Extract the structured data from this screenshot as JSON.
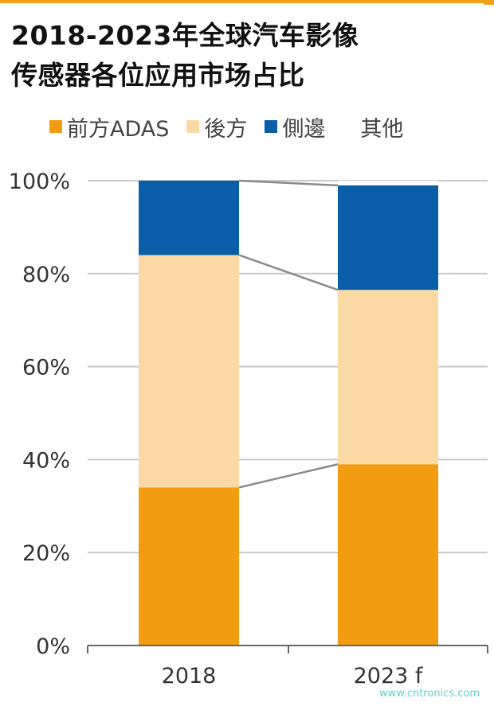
{
  "title_lines": [
    "2018-2023年全球汽车影像",
    "传感器各位应用市场占比"
  ],
  "legend": [
    {
      "label": "前方ADAS",
      "color": "#f29c12"
    },
    {
      "label": "後方",
      "color": "#fbd9a4"
    },
    {
      "label": "側邊",
      "color": "#0a5ea8"
    },
    {
      "label": "其他",
      "color": "#ffffff"
    }
  ],
  "watermark": "www.cntronics.com",
  "chart_data": {
    "type": "bar",
    "stacked": true,
    "title": "2018-2023年全球汽车影像传感器各位应用市场占比",
    "categories": [
      "2018",
      "2023 f"
    ],
    "ylim": [
      0,
      100
    ],
    "yticks": [
      0,
      20,
      40,
      60,
      80,
      100
    ],
    "ytick_labels": [
      "0%",
      "20%",
      "40%",
      "60%",
      "80%",
      "100%"
    ],
    "grid": true,
    "legend_position": "top",
    "series": [
      {
        "name": "前方ADAS",
        "values": [
          34,
          39
        ],
        "color": "#f29c12"
      },
      {
        "name": "後方",
        "values": [
          50,
          37.5
        ],
        "color": "#fbd9a4"
      },
      {
        "name": "側邊",
        "values": [
          16,
          22.5
        ],
        "color": "#0a5ea8"
      },
      {
        "name": "其他",
        "values": [
          0,
          1
        ],
        "color": "#ffffff"
      }
    ]
  }
}
